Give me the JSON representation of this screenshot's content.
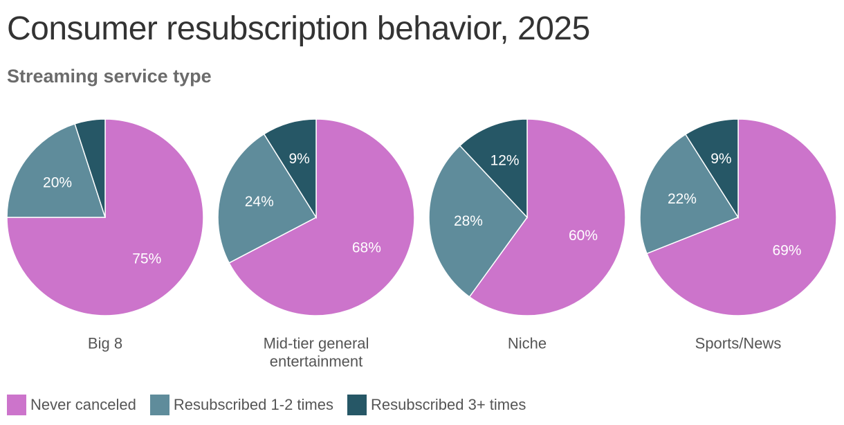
{
  "title": "Consumer resubscription behavior, 2025",
  "subtitle": "Streaming service type",
  "colors": {
    "never": "#cc74cb",
    "resub12": "#5f8c9b",
    "resub3": "#265766"
  },
  "legend": [
    {
      "label": "Never canceled",
      "color": "#cc74cb"
    },
    {
      "label": "Resubscribed 1-2 times",
      "color": "#5f8c9b"
    },
    {
      "label": "Resubscribed 3+ times",
      "color": "#265766"
    }
  ],
  "chart_data": {
    "type": "pie",
    "series_names": [
      "Never canceled",
      "Resubscribed 1-2 times",
      "Resubscribed 3+ times"
    ],
    "pies": [
      {
        "category": "Big 8",
        "category_lines": [
          "Big 8"
        ],
        "values": [
          75,
          20,
          5
        ],
        "labels": [
          "75%",
          "20%",
          ""
        ]
      },
      {
        "category": "Mid-tier general entertainment",
        "category_lines": [
          "Mid-tier general",
          "entertainment"
        ],
        "values": [
          68,
          24,
          9
        ],
        "labels": [
          "68%",
          "24%",
          "9%"
        ]
      },
      {
        "category": "Niche",
        "category_lines": [
          "Niche"
        ],
        "values": [
          60,
          28,
          12
        ],
        "labels": [
          "60%",
          "28%",
          "12%"
        ]
      },
      {
        "category": "Sports/News",
        "category_lines": [
          "Sports/News"
        ],
        "values": [
          69,
          22,
          9
        ],
        "labels": [
          "69%",
          "22%",
          "9%"
        ]
      }
    ]
  }
}
